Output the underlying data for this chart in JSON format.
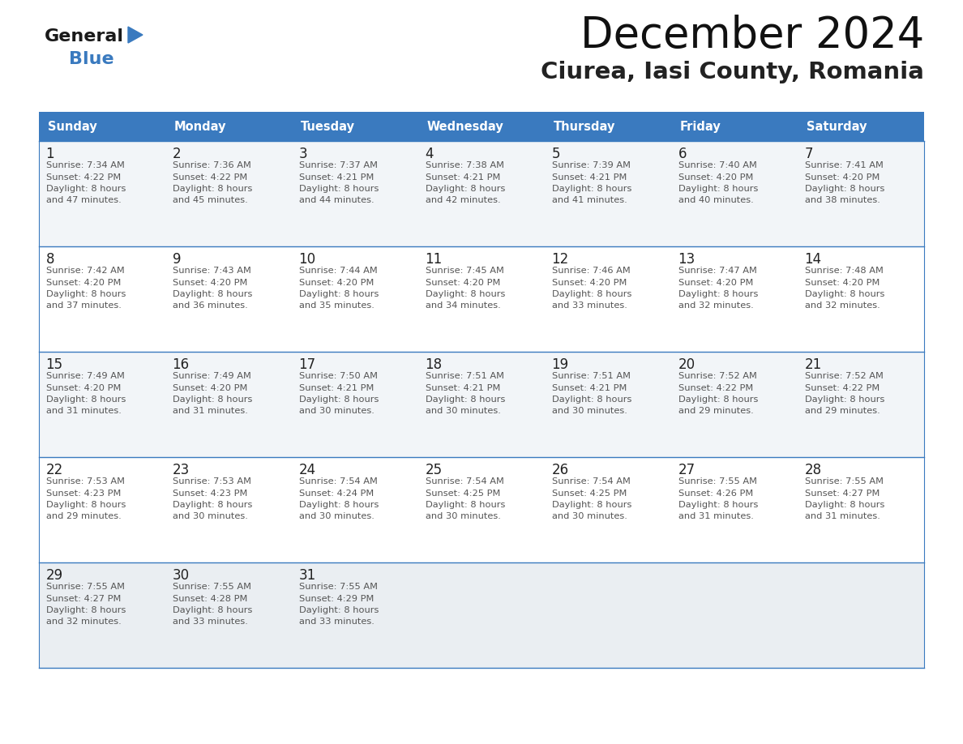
{
  "title": "December 2024",
  "subtitle": "Ciurea, Iasi County, Romania",
  "header_bg": "#3a7abf",
  "header_text": "#ffffff",
  "row_bg_light": "#f2f5f8",
  "row_bg_white": "#ffffff",
  "row_bg_last": "#eaeef2",
  "days_of_week": [
    "Sunday",
    "Monday",
    "Tuesday",
    "Wednesday",
    "Thursday",
    "Friday",
    "Saturday"
  ],
  "calendar": [
    [
      {
        "day": "1",
        "sunrise": "7:34 AM",
        "sunset": "4:22 PM",
        "daylight": "8 hours",
        "daylight2": "and 47 minutes."
      },
      {
        "day": "2",
        "sunrise": "7:36 AM",
        "sunset": "4:22 PM",
        "daylight": "8 hours",
        "daylight2": "and 45 minutes."
      },
      {
        "day": "3",
        "sunrise": "7:37 AM",
        "sunset": "4:21 PM",
        "daylight": "8 hours",
        "daylight2": "and 44 minutes."
      },
      {
        "day": "4",
        "sunrise": "7:38 AM",
        "sunset": "4:21 PM",
        "daylight": "8 hours",
        "daylight2": "and 42 minutes."
      },
      {
        "day": "5",
        "sunrise": "7:39 AM",
        "sunset": "4:21 PM",
        "daylight": "8 hours",
        "daylight2": "and 41 minutes."
      },
      {
        "day": "6",
        "sunrise": "7:40 AM",
        "sunset": "4:20 PM",
        "daylight": "8 hours",
        "daylight2": "and 40 minutes."
      },
      {
        "day": "7",
        "sunrise": "7:41 AM",
        "sunset": "4:20 PM",
        "daylight": "8 hours",
        "daylight2": "and 38 minutes."
      }
    ],
    [
      {
        "day": "8",
        "sunrise": "7:42 AM",
        "sunset": "4:20 PM",
        "daylight": "8 hours",
        "daylight2": "and 37 minutes."
      },
      {
        "day": "9",
        "sunrise": "7:43 AM",
        "sunset": "4:20 PM",
        "daylight": "8 hours",
        "daylight2": "and 36 minutes."
      },
      {
        "day": "10",
        "sunrise": "7:44 AM",
        "sunset": "4:20 PM",
        "daylight": "8 hours",
        "daylight2": "and 35 minutes."
      },
      {
        "day": "11",
        "sunrise": "7:45 AM",
        "sunset": "4:20 PM",
        "daylight": "8 hours",
        "daylight2": "and 34 minutes."
      },
      {
        "day": "12",
        "sunrise": "7:46 AM",
        "sunset": "4:20 PM",
        "daylight": "8 hours",
        "daylight2": "and 33 minutes."
      },
      {
        "day": "13",
        "sunrise": "7:47 AM",
        "sunset": "4:20 PM",
        "daylight": "8 hours",
        "daylight2": "and 32 minutes."
      },
      {
        "day": "14",
        "sunrise": "7:48 AM",
        "sunset": "4:20 PM",
        "daylight": "8 hours",
        "daylight2": "and 32 minutes."
      }
    ],
    [
      {
        "day": "15",
        "sunrise": "7:49 AM",
        "sunset": "4:20 PM",
        "daylight": "8 hours",
        "daylight2": "and 31 minutes."
      },
      {
        "day": "16",
        "sunrise": "7:49 AM",
        "sunset": "4:20 PM",
        "daylight": "8 hours",
        "daylight2": "and 31 minutes."
      },
      {
        "day": "17",
        "sunrise": "7:50 AM",
        "sunset": "4:21 PM",
        "daylight": "8 hours",
        "daylight2": "and 30 minutes."
      },
      {
        "day": "18",
        "sunrise": "7:51 AM",
        "sunset": "4:21 PM",
        "daylight": "8 hours",
        "daylight2": "and 30 minutes."
      },
      {
        "day": "19",
        "sunrise": "7:51 AM",
        "sunset": "4:21 PM",
        "daylight": "8 hours",
        "daylight2": "and 30 minutes."
      },
      {
        "day": "20",
        "sunrise": "7:52 AM",
        "sunset": "4:22 PM",
        "daylight": "8 hours",
        "daylight2": "and 29 minutes."
      },
      {
        "day": "21",
        "sunrise": "7:52 AM",
        "sunset": "4:22 PM",
        "daylight": "8 hours",
        "daylight2": "and 29 minutes."
      }
    ],
    [
      {
        "day": "22",
        "sunrise": "7:53 AM",
        "sunset": "4:23 PM",
        "daylight": "8 hours",
        "daylight2": "and 29 minutes."
      },
      {
        "day": "23",
        "sunrise": "7:53 AM",
        "sunset": "4:23 PM",
        "daylight": "8 hours",
        "daylight2": "and 30 minutes."
      },
      {
        "day": "24",
        "sunrise": "7:54 AM",
        "sunset": "4:24 PM",
        "daylight": "8 hours",
        "daylight2": "and 30 minutes."
      },
      {
        "day": "25",
        "sunrise": "7:54 AM",
        "sunset": "4:25 PM",
        "daylight": "8 hours",
        "daylight2": "and 30 minutes."
      },
      {
        "day": "26",
        "sunrise": "7:54 AM",
        "sunset": "4:25 PM",
        "daylight": "8 hours",
        "daylight2": "and 30 minutes."
      },
      {
        "day": "27",
        "sunrise": "7:55 AM",
        "sunset": "4:26 PM",
        "daylight": "8 hours",
        "daylight2": "and 31 minutes."
      },
      {
        "day": "28",
        "sunrise": "7:55 AM",
        "sunset": "4:27 PM",
        "daylight": "8 hours",
        "daylight2": "and 31 minutes."
      }
    ],
    [
      {
        "day": "29",
        "sunrise": "7:55 AM",
        "sunset": "4:27 PM",
        "daylight": "8 hours",
        "daylight2": "and 32 minutes."
      },
      {
        "day": "30",
        "sunrise": "7:55 AM",
        "sunset": "4:28 PM",
        "daylight": "8 hours",
        "daylight2": "and 33 minutes."
      },
      {
        "day": "31",
        "sunrise": "7:55 AM",
        "sunset": "4:29 PM",
        "daylight": "8 hours",
        "daylight2": "and 33 minutes."
      },
      null,
      null,
      null,
      null
    ]
  ],
  "border_color": "#3a7abf",
  "day_number_color": "#222222",
  "info_text_color": "#555555",
  "title_color": "#111111",
  "subtitle_color": "#222222"
}
